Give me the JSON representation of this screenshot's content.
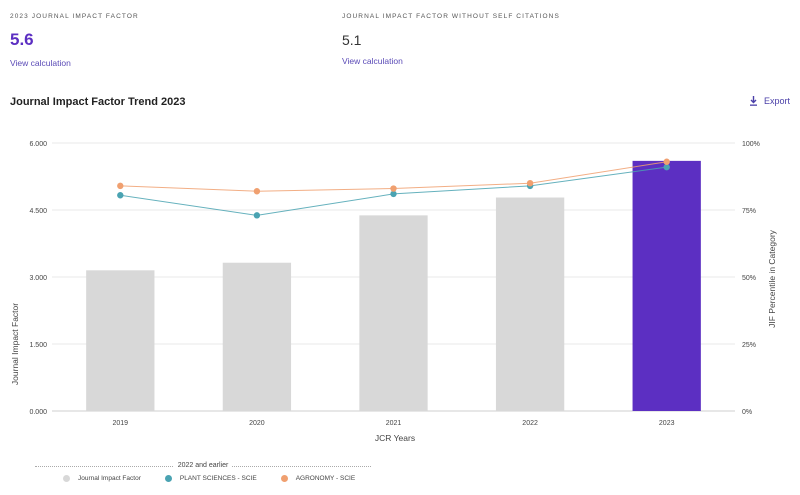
{
  "metrics": {
    "jif_label": "2023 JOURNAL IMPACT FACTOR",
    "jif_value": "5.6",
    "jif_link": "View calculation",
    "jif_noself_label": "JOURNAL IMPACT FACTOR WITHOUT SELF CITATIONS",
    "jif_noself_value": "5.1",
    "jif_noself_link": "View calculation"
  },
  "section": {
    "title": "Journal Impact Factor Trend 2023",
    "export_label": "Export",
    "export_icon": "download-icon"
  },
  "colors": {
    "bar": "#d8d8d8",
    "bar_highlight": "#5c2fc2",
    "plant": "#4aa3b2",
    "agronomy": "#f0a070",
    "grid": "#e8e8e8"
  },
  "chart_data": {
    "type": "bar",
    "categories": [
      "2019",
      "2020",
      "2021",
      "2022",
      "2023"
    ],
    "values": [
      3.15,
      3.32,
      4.38,
      4.78,
      5.6
    ],
    "highlight": "2023",
    "xlabel": "JCR Years",
    "ylabel": "Journal Impact Factor",
    "ylabel_right": "JIF Percentile in Category",
    "ylim": [
      0,
      6
    ],
    "yticks": [
      "0.000",
      "1.500",
      "3.000",
      "4.500",
      "6.000"
    ],
    "yticks_right": [
      "0%",
      "25%",
      "50%",
      "75%",
      "100%"
    ],
    "ylim_right": [
      0,
      100
    ],
    "grid": true,
    "series": [
      {
        "name": "PLANT SCIENCES - SCIE",
        "type": "line",
        "values": [
          80.5,
          73,
          81,
          84,
          91
        ]
      },
      {
        "name": "AGRONOMY - SCIE",
        "type": "line",
        "values": [
          84,
          82,
          83,
          85,
          93
        ]
      }
    ],
    "legend_title": "2022 and earlier",
    "legend": [
      "Journal Impact Factor",
      "PLANT SCIENCES - SCIE",
      "AGRONOMY - SCIE"
    ],
    "legend_position": "bottom-left"
  }
}
